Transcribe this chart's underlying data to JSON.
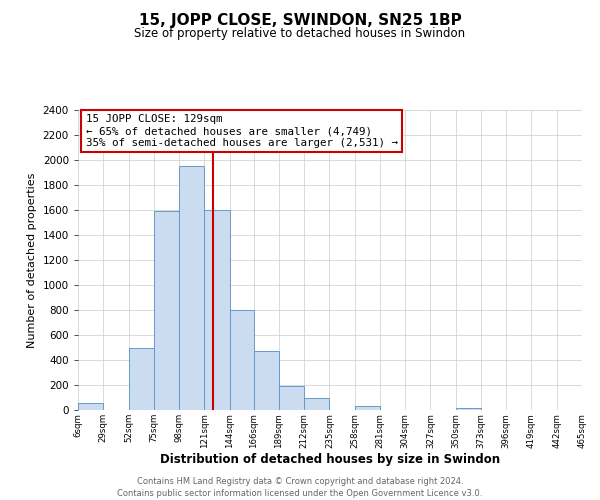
{
  "title": "15, JOPP CLOSE, SWINDON, SN25 1BP",
  "subtitle": "Size of property relative to detached houses in Swindon",
  "xlabel": "Distribution of detached houses by size in Swindon",
  "ylabel": "Number of detached properties",
  "bar_color": "#ccdcf0",
  "bar_edge_color": "#6699cc",
  "vline_x": 129,
  "vline_color": "#cc0000",
  "annotation_line1": "15 JOPP CLOSE: 129sqm",
  "annotation_line2": "← 65% of detached houses are smaller (4,749)",
  "annotation_line3": "35% of semi-detached houses are larger (2,531) →",
  "annotation_box_edge": "#cc0000",
  "footer1": "Contains HM Land Registry data © Crown copyright and database right 2024.",
  "footer2": "Contains public sector information licensed under the Open Government Licence v3.0.",
  "bin_edges": [
    6,
    29,
    52,
    75,
    98,
    121,
    144,
    166,
    189,
    212,
    235,
    258,
    281,
    304,
    327,
    350,
    373,
    396,
    419,
    442,
    465
  ],
  "bin_heights": [
    55,
    0,
    500,
    1590,
    1950,
    1600,
    800,
    470,
    190,
    95,
    0,
    35,
    0,
    0,
    0,
    20,
    0,
    0,
    0,
    0
  ],
  "tick_labels": [
    "6sqm",
    "29sqm",
    "52sqm",
    "75sqm",
    "98sqm",
    "121sqm",
    "144sqm",
    "166sqm",
    "189sqm",
    "212sqm",
    "235sqm",
    "258sqm",
    "281sqm",
    "304sqm",
    "327sqm",
    "350sqm",
    "373sqm",
    "396sqm",
    "419sqm",
    "442sqm",
    "465sqm"
  ],
  "ylim": [
    0,
    2400
  ],
  "xlim": [
    6,
    465
  ],
  "yticks": [
    0,
    200,
    400,
    600,
    800,
    1000,
    1200,
    1400,
    1600,
    1800,
    2000,
    2200,
    2400
  ],
  "background_color": "#ffffff",
  "grid_color": "#cccccc"
}
